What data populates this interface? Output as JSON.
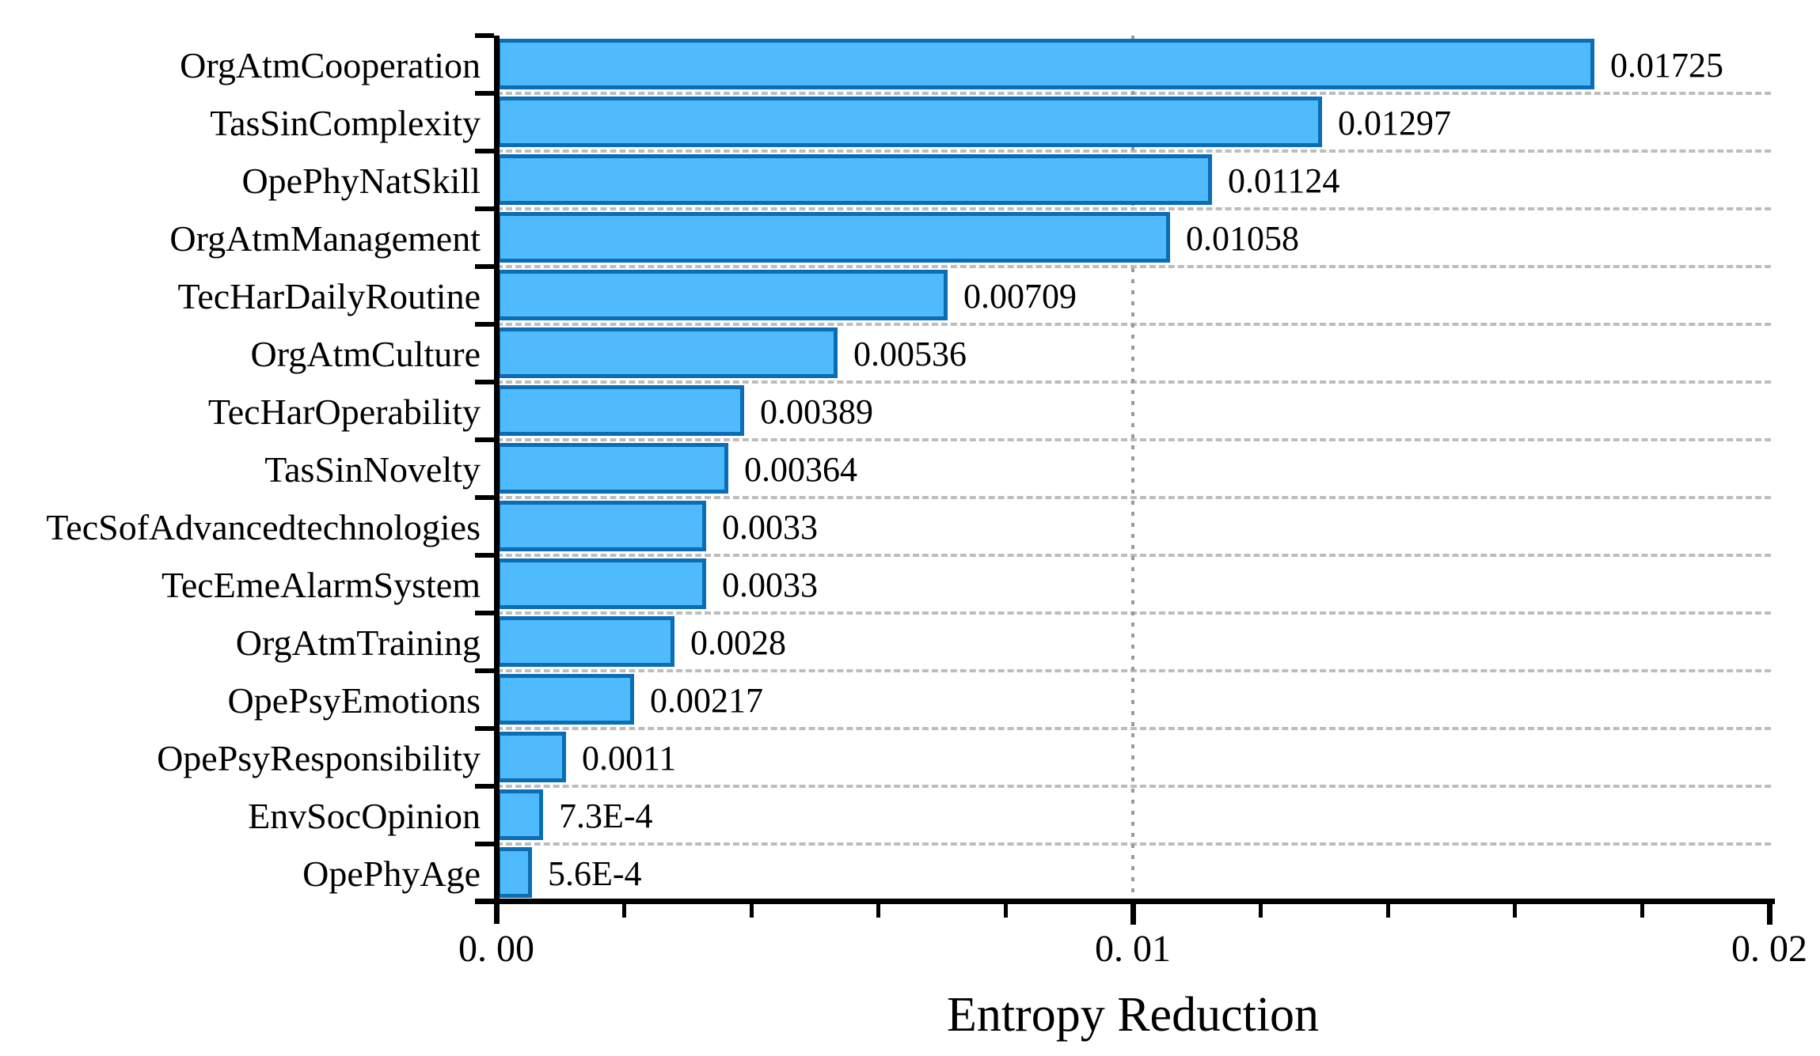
{
  "chart_data": {
    "type": "bar",
    "orientation": "horizontal",
    "xlabel": "Entropy Reduction",
    "xlim": [
      0,
      0.02
    ],
    "xticks": [
      {
        "value": 0.0,
        "label": "0. 00"
      },
      {
        "value": 0.01,
        "label": "0. 01"
      },
      {
        "value": 0.02,
        "label": "0. 02"
      }
    ],
    "minor_tick_step": 0.002,
    "legend": "none",
    "grid": {
      "horizontal_row_separators": "dashed",
      "vertical_at_inner_major_ticks": "dotted"
    },
    "categories": [
      "OrgAtmCooperation",
      "TasSinComplexity",
      "OpePhyNatSkill",
      "OrgAtmManagement",
      "TecHarDailyRoutine",
      "OrgAtmCulture",
      "TecHarOperability",
      "TasSinNovelty",
      "TecSofAdvancedtechnologies",
      "TecEmeAlarmSystem",
      "OrgAtmTraining",
      "OpePsyEmotions",
      "OpePsyResponsibility",
      "EnvSocOpinion",
      "OpePhyAge"
    ],
    "values": [
      0.01725,
      0.01297,
      0.01124,
      0.01058,
      0.00709,
      0.00536,
      0.00389,
      0.00364,
      0.0033,
      0.0033,
      0.0028,
      0.00217,
      0.0011,
      0.00073,
      0.00056
    ],
    "value_labels": [
      "0.01725",
      "0.01297",
      "0.01124",
      "0.01058",
      "0.00709",
      "0.00536",
      "0.00389",
      "0.00364",
      "0.0033",
      "0.0033",
      "0.0028",
      "0.00217",
      "0.0011",
      "7.3E-4",
      "5.6E-4"
    ],
    "colors": {
      "bar_fill": "#4fbafc",
      "bar_border": "#0a6db5",
      "axis": "#000000",
      "text": "#000000",
      "h_gridline": "#bdbdbd",
      "v_gridline": "#9a9a9a",
      "background": "#ffffff"
    }
  }
}
